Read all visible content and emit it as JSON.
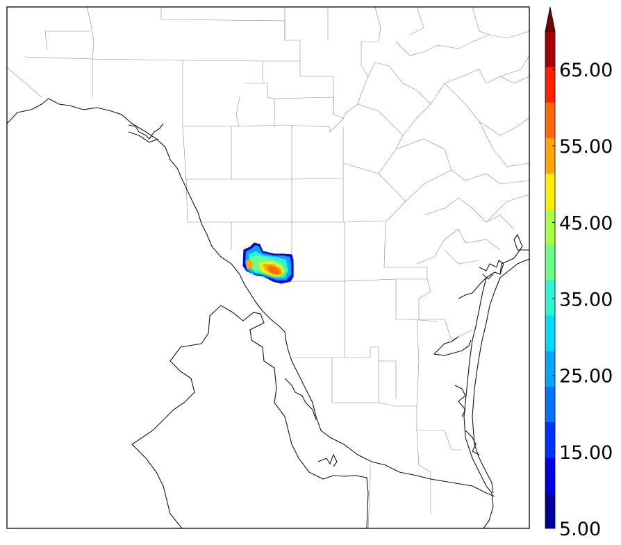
{
  "colorbar": {
    "tick_labels": [
      "5.00",
      "15.00",
      "25.00",
      "35.00",
      "45.00",
      "55.00",
      "65.00"
    ],
    "min": 5,
    "max": 70,
    "step": 5,
    "extend": "max",
    "colors": [
      "#00009c",
      "#0000e6",
      "#0033ff",
      "#0073ff",
      "#00a6ff",
      "#00d9ff",
      "#2ef2d2",
      "#6bff8a",
      "#a8ff45",
      "#ffee00",
      "#ffa600",
      "#ff6b00",
      "#ff2200",
      "#a80000"
    ],
    "extend_color": "#7a0000"
  },
  "map": {
    "field_peak_value": 65,
    "field_edge_value": 10
  }
}
